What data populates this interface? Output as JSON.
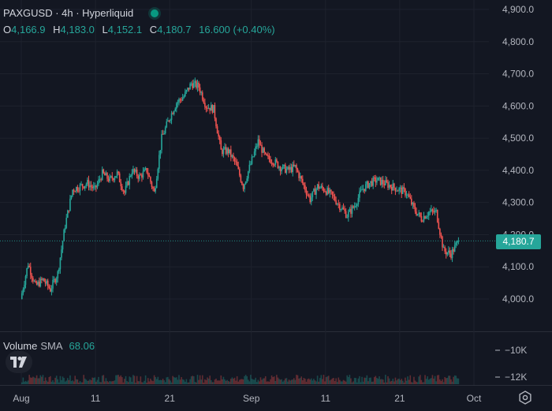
{
  "header": {
    "title": "PAXGUSD · 4h · Hyperliquid",
    "status_icon": "live-dot-icon"
  },
  "ohlc": {
    "o_label": "O",
    "o_value": "4,166.9",
    "h_label": "H",
    "h_value": "4,183.0",
    "l_label": "L",
    "l_value": "4,152.1",
    "c_label": "C",
    "c_value": "4,180.7",
    "change": "16.600 (+0.40%)"
  },
  "last_price_label": "4,180.7",
  "volume": {
    "label": "Volume",
    "indicator": "SMA",
    "value": "68.06",
    "axis_labels": [
      "10K",
      "12K"
    ]
  },
  "colors": {
    "background": "#131722",
    "up": "#26a69a",
    "down": "#ef5350",
    "grid": "#1e222d",
    "text": "#d1d4dc"
  },
  "chart_data": {
    "type": "candlestick",
    "symbol": "PAXGUSD",
    "interval": "4h",
    "exchange": "Hyperliquid",
    "ylim": [
      3900,
      4920
    ],
    "y_ticks": [
      "4,900.0",
      "4,800.0",
      "4,700.0",
      "4,600.0",
      "4,500.0",
      "4,400.0",
      "4,300.0",
      "4,200.0",
      "4,100.0",
      "4,000.0"
    ],
    "y_tick_values": [
      4900,
      4800,
      4700,
      4600,
      4500,
      4400,
      4300,
      4200,
      4100,
      4000
    ],
    "x_ticks": [
      "Aug",
      "11",
      "21",
      "Sep",
      "11",
      "21",
      "Oct"
    ],
    "x_tick_days": [
      0,
      10,
      20,
      31,
      41,
      51,
      61
    ],
    "last_price": 4180.7,
    "approx_closes": [
      [
        0,
        4000
      ],
      [
        1,
        4110
      ],
      [
        2,
        4040
      ],
      [
        3,
        4060
      ],
      [
        4,
        4030
      ],
      [
        5,
        4080
      ],
      [
        6,
        4230
      ],
      [
        7,
        4340
      ],
      [
        8,
        4350
      ],
      [
        9,
        4360
      ],
      [
        10,
        4340
      ],
      [
        11,
        4390
      ],
      [
        12,
        4370
      ],
      [
        13,
        4390
      ],
      [
        14,
        4330
      ],
      [
        15,
        4400
      ],
      [
        16,
        4380
      ],
      [
        17,
        4400
      ],
      [
        18,
        4330
      ],
      [
        19,
        4500
      ],
      [
        20,
        4560
      ],
      [
        21,
        4610
      ],
      [
        22,
        4630
      ],
      [
        23,
        4670
      ],
      [
        24,
        4660
      ],
      [
        25,
        4600
      ],
      [
        26,
        4590
      ],
      [
        27,
        4460
      ],
      [
        28,
        4460
      ],
      [
        29,
        4420
      ],
      [
        30,
        4350
      ],
      [
        31,
        4420
      ],
      [
        32,
        4490
      ],
      [
        33,
        4440
      ],
      [
        34,
        4430
      ],
      [
        35,
        4410
      ],
      [
        36,
        4400
      ],
      [
        37,
        4410
      ],
      [
        38,
        4360
      ],
      [
        39,
        4310
      ],
      [
        40,
        4350
      ],
      [
        41,
        4340
      ],
      [
        42,
        4320
      ],
      [
        43,
        4290
      ],
      [
        44,
        4260
      ],
      [
        45,
        4290
      ],
      [
        46,
        4340
      ],
      [
        47,
        4360
      ],
      [
        48,
        4370
      ],
      [
        49,
        4360
      ],
      [
        50,
        4350
      ],
      [
        51,
        4340
      ],
      [
        52,
        4330
      ],
      [
        53,
        4280
      ],
      [
        54,
        4250
      ],
      [
        55,
        4270
      ],
      [
        56,
        4270
      ],
      [
        57,
        4150
      ],
      [
        58,
        4140
      ],
      [
        59,
        4180.7
      ]
    ]
  }
}
